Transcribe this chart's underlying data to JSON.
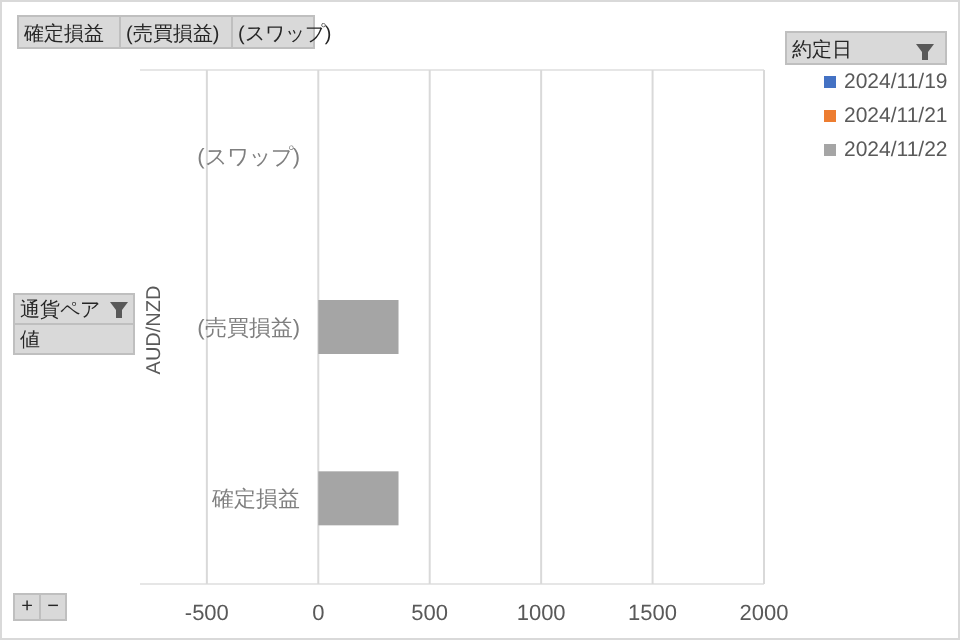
{
  "chart_data": {
    "type": "bar",
    "orientation": "horizontal",
    "categories": [
      "(スワップ)",
      "(売買損益)",
      "確定損益"
    ],
    "ylabel": "AUD/NZD",
    "legend_title": "約定日",
    "series": [
      {
        "name": "2024/11/19",
        "color": "#4472c4",
        "values": [
          null,
          null,
          null
        ]
      },
      {
        "name": "2024/11/21",
        "color": "#ed7d31",
        "values": [
          null,
          null,
          null
        ]
      },
      {
        "name": "2024/11/22",
        "color": "#a5a5a5",
        "values": [
          null,
          360,
          360
        ]
      }
    ],
    "xlim": [
      -800,
      2000
    ],
    "xticks": [
      -500,
      0,
      500,
      1000,
      1500,
      2000
    ],
    "grid": "x",
    "legend": "right",
    "annotations": [
      "確定損益",
      "(売買損益)",
      "(スワップ)",
      "通貨ペア",
      "値",
      "+",
      "−"
    ]
  }
}
